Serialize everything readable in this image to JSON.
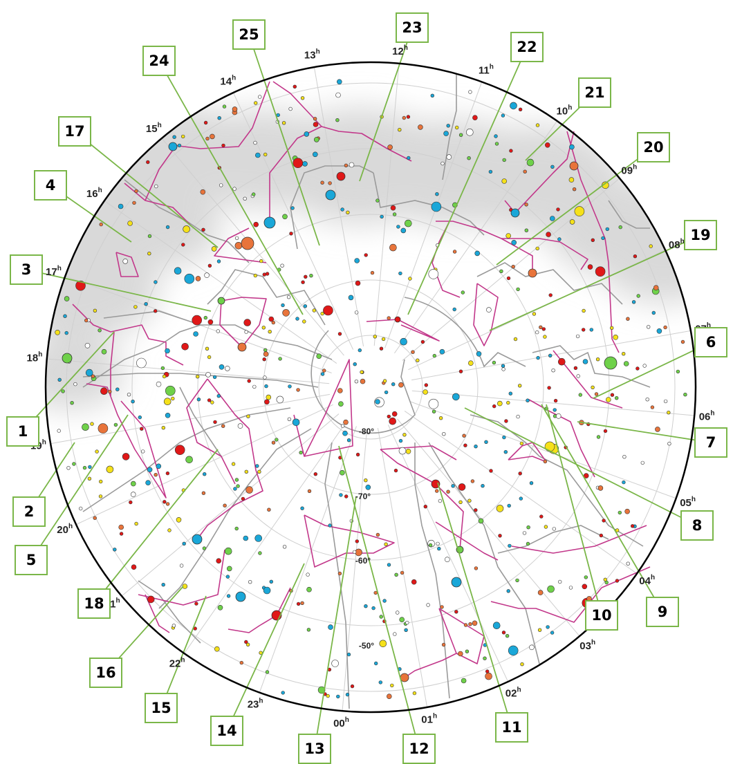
{
  "ra_labels": [
    "00",
    "01",
    "02",
    "03",
    "04",
    "05",
    "06",
    "07",
    "08",
    "09",
    "10",
    "11",
    "12",
    "13",
    "14",
    "15",
    "16",
    "17",
    "18",
    "19",
    "20",
    "21",
    "22",
    "23"
  ],
  "ra_unit": "h",
  "dec_labels": [
    "-80°",
    "-70°",
    "-60°",
    "-50°"
  ],
  "callouts": [
    "1",
    "2",
    "3",
    "4",
    "5",
    "6",
    "7",
    "8",
    "9",
    "10",
    "11",
    "12",
    "13",
    "14",
    "15",
    "16",
    "17",
    "18",
    "19",
    "20",
    "21",
    "22",
    "23",
    "24",
    "25"
  ],
  "colors": {
    "constellation_line": "#c2378a",
    "boundary": "#9a9a9a",
    "grid": "#cfcfcf",
    "milky_way": "#d9d9d9",
    "callout_border": "#7ab648",
    "leader_line": "#7ab648",
    "star_blue": "#1aa7d8",
    "star_orange": "#e8743b",
    "star_yellow": "#f5e11a",
    "star_green": "#6fd14a",
    "star_red": "#e01818",
    "star_white": "#ffffff"
  }
}
